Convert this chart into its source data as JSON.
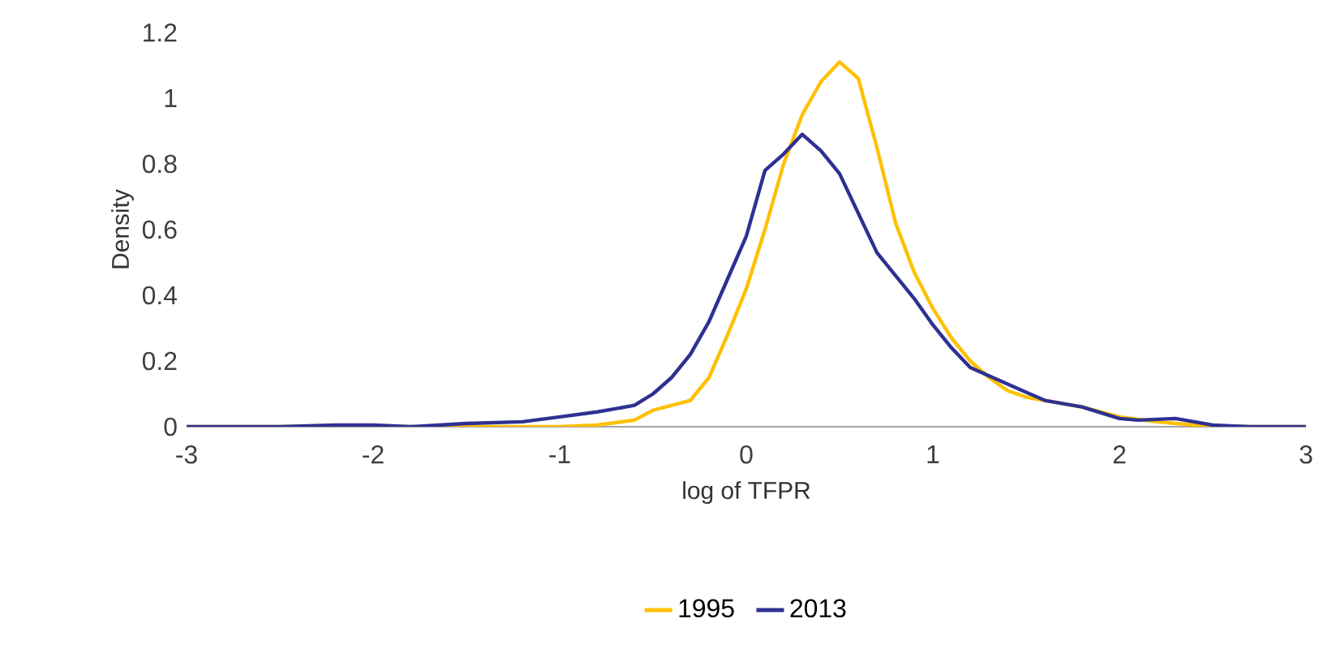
{
  "chart_data": {
    "type": "line",
    "xlabel": "log of TFPR",
    "ylabel": "Density",
    "xlim": [
      -3,
      3
    ],
    "xticks": [
      -3,
      -2,
      -1,
      0,
      1,
      2,
      3
    ],
    "ylim": [
      0,
      1.2
    ],
    "yticks": [
      0,
      0.2,
      0.4,
      0.6,
      0.8,
      1,
      1.2
    ],
    "grid": false,
    "legend": "bottom",
    "marker": "none",
    "line_style": "solid",
    "series": [
      {
        "name": "1995",
        "color": "#ffc000",
        "x": [
          -3,
          -2,
          -1,
          -0.8,
          -0.6,
          -0.5,
          -0.4,
          -0.3,
          -0.2,
          -0.1,
          0,
          0.1,
          0.2,
          0.3,
          0.4,
          0.5,
          0.6,
          0.7,
          0.8,
          0.9,
          1.0,
          1.1,
          1.2,
          1.3,
          1.4,
          1.5,
          1.6,
          1.8,
          2.0,
          2.2,
          2.4,
          2.6,
          3
        ],
        "values": [
          0,
          0,
          0,
          0.005,
          0.02,
          0.05,
          0.065,
          0.08,
          0.15,
          0.28,
          0.42,
          0.6,
          0.8,
          0.95,
          1.05,
          1.11,
          1.06,
          0.85,
          0.62,
          0.47,
          0.36,
          0.27,
          0.2,
          0.15,
          0.11,
          0.09,
          0.08,
          0.06,
          0.03,
          0.015,
          0.005,
          0,
          0
        ]
      },
      {
        "name": "2013",
        "color": "#2e3192",
        "x": [
          -3,
          -2.5,
          -2.2,
          -2,
          -1.8,
          -1.5,
          -1.2,
          -1,
          -0.8,
          -0.6,
          -0.5,
          -0.4,
          -0.3,
          -0.2,
          -0.1,
          0,
          0.1,
          0.2,
          0.3,
          0.4,
          0.5,
          0.6,
          0.7,
          0.8,
          0.9,
          1.0,
          1.1,
          1.2,
          1.4,
          1.6,
          1.8,
          2.0,
          2.1,
          2.3,
          2.5,
          2.7,
          3
        ],
        "values": [
          0,
          0,
          0.005,
          0.005,
          0,
          0.01,
          0.015,
          0.03,
          0.045,
          0.065,
          0.1,
          0.15,
          0.22,
          0.32,
          0.45,
          0.58,
          0.78,
          0.83,
          0.89,
          0.84,
          0.77,
          0.65,
          0.53,
          0.46,
          0.39,
          0.31,
          0.24,
          0.18,
          0.13,
          0.08,
          0.06,
          0.025,
          0.02,
          0.025,
          0.005,
          0,
          0
        ]
      }
    ]
  }
}
